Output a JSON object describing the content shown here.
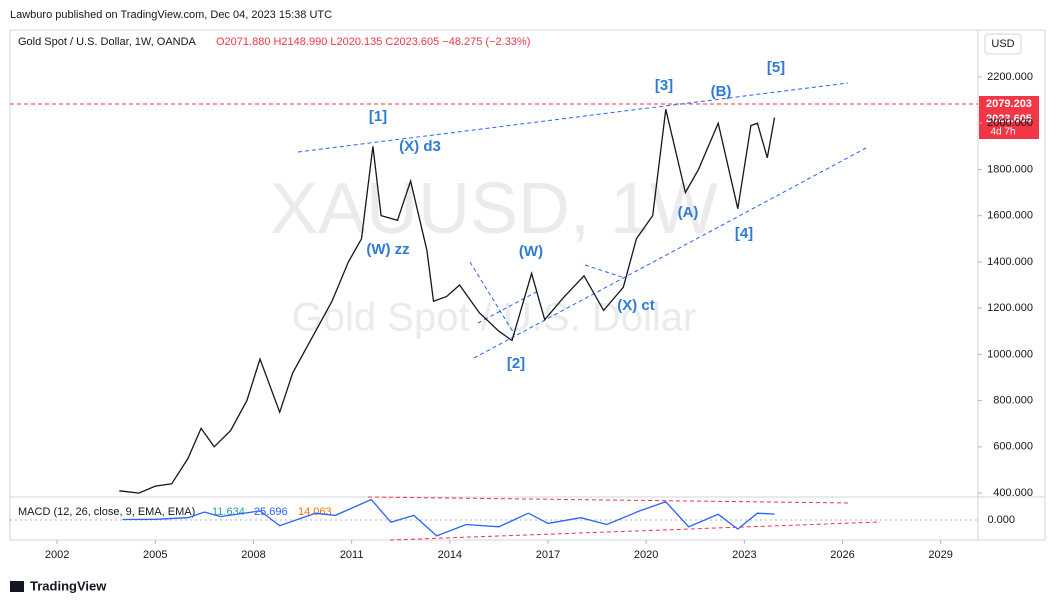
{
  "header": {
    "publisher": "Lawburo published on TradingView.com, Dec 04, 2023 15:38 UTC",
    "currency": "USD"
  },
  "legend": {
    "symbol": "Gold Spot / U.S. Dollar, 1W, OANDA",
    "ohlc": "O2071.880 H2148.990 L2020.135 C2023.605 −48.275 (−2.33%)"
  },
  "watermark": {
    "ticker": "XAUUSD, 1W",
    "name": "Gold Spot / U.S. Dollar"
  },
  "annotations": [
    "[1]",
    "(X) d3",
    "(W) zz",
    "(W)",
    "[2]",
    "(X) ct",
    "[3]",
    "(B)",
    "[5]",
    "(A)",
    "[4]"
  ],
  "price_labels": {
    "line": "2079.203",
    "last": "2023.605",
    "countdown": "4d 7h"
  },
  "price_chart": {
    "type": "line",
    "color": "#131722",
    "x": [
      2003.9,
      2004.5,
      2005.0,
      2005.5,
      2006.0,
      2006.4,
      2006.8,
      2007.3,
      2007.8,
      2008.2,
      2008.8,
      2009.2,
      2009.9,
      2010.4,
      2010.9,
      2011.3,
      2011.65,
      2011.9,
      2012.4,
      2012.8,
      2013.3,
      2013.5,
      2013.9,
      2014.3,
      2014.9,
      2015.5,
      2015.9,
      2016.5,
      2016.9,
      2017.5,
      2018.1,
      2018.7,
      2019.3,
      2019.7,
      2020.2,
      2020.6,
      2021.2,
      2021.6,
      2022.2,
      2022.8,
      2023.2,
      2023.4,
      2023.7,
      2023.92
    ],
    "values": [
      410,
      400,
      430,
      440,
      550,
      680,
      600,
      670,
      800,
      980,
      750,
      920,
      1100,
      1230,
      1400,
      1500,
      1900,
      1600,
      1580,
      1750,
      1450,
      1230,
      1250,
      1300,
      1180,
      1100,
      1060,
      1350,
      1150,
      1250,
      1340,
      1190,
      1290,
      1500,
      1600,
      2060,
      1700,
      1800,
      2000,
      1630,
      1990,
      2000,
      1850,
      2024
    ],
    "xlim": [
      2000.56,
      2030.14
    ],
    "ylim": [
      383,
      2403
    ],
    "xticks": [
      2002,
      2005,
      2008,
      2011,
      2014,
      2017,
      2020,
      2023,
      2026,
      2029
    ],
    "yticks": [
      {
        "value": 400,
        "label": "400.000"
      },
      {
        "value": 600,
        "label": "600.000"
      },
      {
        "value": 800,
        "label": "800.000"
      },
      {
        "value": 1000,
        "label": "1000.000"
      },
      {
        "value": 1200,
        "label": "1200.000"
      },
      {
        "value": 1400,
        "label": "1400.000"
      },
      {
        "value": 1600,
        "label": "1600.000"
      },
      {
        "value": 1800,
        "label": "1800.000"
      },
      {
        "value": 2000,
        "label": "2000.000"
      },
      {
        "value": 2200,
        "label": "2200.000"
      }
    ]
  },
  "macd": {
    "label": "MACD (12, 26, close, 9, EMA, EMA)",
    "histogram": "11.634",
    "macd": "25.696",
    "signal": "14.063",
    "x": [
      2004,
      2005,
      2006,
      2006.5,
      2007,
      2008.2,
      2008.8,
      2009.9,
      2010.5,
      2011.6,
      2012.2,
      2012.9,
      2013.6,
      2014.5,
      2015.5,
      2016.4,
      2017,
      2018,
      2018.8,
      2019.8,
      2020.6,
      2021.3,
      2022.2,
      2022.8,
      2023.4,
      2023.92
    ],
    "values": [
      2,
      3,
      10,
      35,
      15,
      40,
      -25,
      30,
      20,
      90,
      -10,
      20,
      -70,
      -20,
      -30,
      30,
      -15,
      10,
      -20,
      40,
      80,
      -30,
      25,
      -40,
      30,
      26
    ],
    "ylim": [
      -88,
      101
    ],
    "yticks": [
      {
        "value": 0,
        "label": "0.000"
      }
    ]
  },
  "footer": {
    "brand": "TradingView"
  }
}
